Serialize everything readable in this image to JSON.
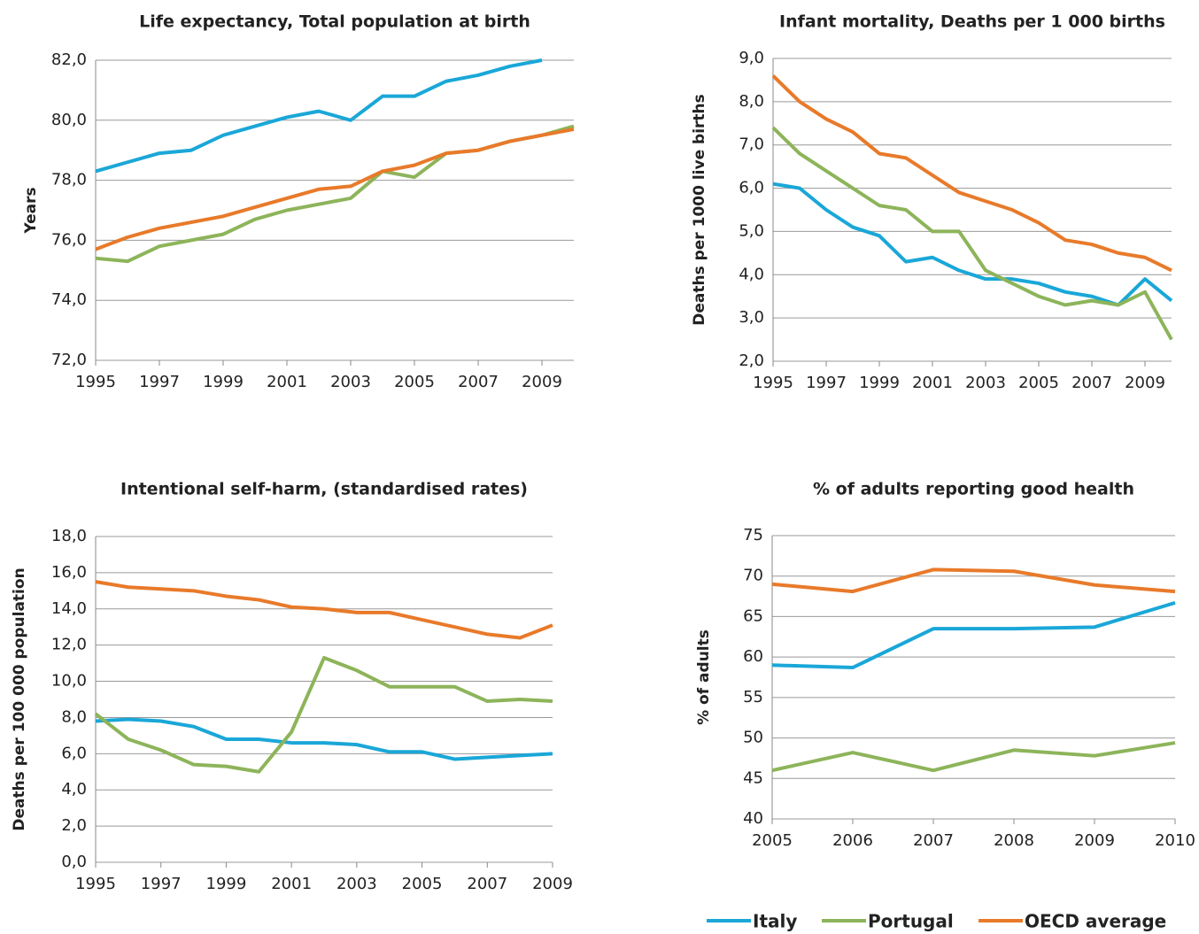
{
  "chart_data": [
    {
      "type": "line",
      "title": "Life expectancy, Total population at birth",
      "ylabel": "Years",
      "x": [
        1995,
        1996,
        1997,
        1998,
        1999,
        2000,
        2001,
        2002,
        2003,
        2004,
        2005,
        2006,
        2007,
        2008,
        2009,
        2010
      ],
      "xlim": [
        1995,
        2010
      ],
      "xticks": [
        1995,
        1997,
        1999,
        2001,
        2003,
        2005,
        2007,
        2009
      ],
      "ylim": [
        72,
        82
      ],
      "yticks": [
        {
          "value": 72,
          "label": "72,0"
        },
        {
          "value": 74,
          "label": "74,0"
        },
        {
          "value": 76,
          "label": "76,0"
        },
        {
          "value": 78,
          "label": "78,0"
        },
        {
          "value": 80,
          "label": "80,0"
        },
        {
          "value": 82,
          "label": "82,0"
        }
      ],
      "grid": true,
      "series": [
        {
          "name": "Italy",
          "color": "#1aa7d8",
          "values": [
            78.3,
            78.6,
            78.9,
            79.0,
            79.5,
            79.8,
            80.1,
            80.3,
            80.0,
            80.8,
            80.8,
            81.3,
            81.5,
            81.8,
            82.0,
            null
          ]
        },
        {
          "name": "Portugal",
          "color": "#8db45a",
          "values": [
            75.4,
            75.3,
            75.8,
            76.0,
            76.2,
            76.7,
            77.0,
            77.2,
            77.4,
            78.3,
            78.1,
            78.9,
            79.0,
            79.3,
            79.5,
            79.8
          ]
        },
        {
          "name": "OECD average",
          "color": "#e87a2a",
          "values": [
            75.7,
            76.1,
            76.4,
            76.6,
            76.8,
            77.1,
            77.4,
            77.7,
            77.8,
            78.3,
            78.5,
            78.9,
            79.0,
            79.3,
            79.5,
            79.7
          ]
        }
      ]
    },
    {
      "type": "line",
      "title": "Infant mortality, Deaths per 1 000 births",
      "ylabel": "Deaths per 1000 live births",
      "x": [
        1995,
        1996,
        1997,
        1998,
        1999,
        2000,
        2001,
        2002,
        2003,
        2004,
        2005,
        2006,
        2007,
        2008,
        2009,
        2010
      ],
      "xlim": [
        1995,
        2010
      ],
      "xticks": [
        1995,
        1997,
        1999,
        2001,
        2003,
        2005,
        2007,
        2009
      ],
      "ylim": [
        2,
        9
      ],
      "yticks": [
        {
          "value": 2,
          "label": "2,0"
        },
        {
          "value": 3,
          "label": "3,0"
        },
        {
          "value": 4,
          "label": "4,0"
        },
        {
          "value": 5,
          "label": "5,0"
        },
        {
          "value": 6,
          "label": "6,0"
        },
        {
          "value": 7,
          "label": "7,0"
        },
        {
          "value": 8,
          "label": "8,0"
        },
        {
          "value": 9,
          "label": "9,0"
        }
      ],
      "grid": true,
      "series": [
        {
          "name": "Italy",
          "color": "#1aa7d8",
          "values": [
            6.1,
            6.0,
            5.5,
            5.1,
            4.9,
            4.3,
            4.4,
            4.1,
            3.9,
            3.9,
            3.8,
            3.6,
            3.5,
            3.3,
            3.9,
            3.4
          ]
        },
        {
          "name": "Portugal",
          "color": "#8db45a",
          "values": [
            7.4,
            6.8,
            6.4,
            6.0,
            5.6,
            5.5,
            5.0,
            5.0,
            4.1,
            3.8,
            3.5,
            3.3,
            3.4,
            3.3,
            3.6,
            2.5
          ]
        },
        {
          "name": "OECD average",
          "color": "#e87a2a",
          "values": [
            8.6,
            8.0,
            7.6,
            7.3,
            6.8,
            6.7,
            6.3,
            5.9,
            5.7,
            5.5,
            5.2,
            4.8,
            4.7,
            4.5,
            4.4,
            4.1
          ]
        }
      ]
    },
    {
      "type": "line",
      "title": "Intentional self-harm, (standardised rates)",
      "ylabel": "Deaths per 100 000 population",
      "x": [
        1995,
        1996,
        1997,
        1998,
        1999,
        2000,
        2001,
        2002,
        2003,
        2004,
        2005,
        2006,
        2007,
        2008,
        2009
      ],
      "xlim": [
        1995,
        2009
      ],
      "xticks": [
        1995,
        1997,
        1999,
        2001,
        2003,
        2005,
        2007,
        2009
      ],
      "ylim": [
        0,
        18
      ],
      "yticks": [
        {
          "value": 0,
          "label": "0,0"
        },
        {
          "value": 2,
          "label": "2,0"
        },
        {
          "value": 4,
          "label": "4,0"
        },
        {
          "value": 6,
          "label": "6,0"
        },
        {
          "value": 8,
          "label": "8,0"
        },
        {
          "value": 10,
          "label": "10,0"
        },
        {
          "value": 12,
          "label": "12,0"
        },
        {
          "value": 14,
          "label": "14,0"
        },
        {
          "value": 16,
          "label": "16,0"
        },
        {
          "value": 18,
          "label": "18,0"
        }
      ],
      "grid": true,
      "series": [
        {
          "name": "Italy",
          "color": "#1aa7d8",
          "values": [
            7.8,
            7.9,
            7.8,
            7.5,
            6.8,
            6.8,
            6.6,
            6.6,
            6.5,
            6.1,
            6.1,
            5.7,
            5.8,
            5.9,
            6.0
          ]
        },
        {
          "name": "Portugal",
          "color": "#8db45a",
          "values": [
            8.2,
            6.8,
            6.2,
            5.4,
            5.3,
            5.0,
            7.2,
            11.3,
            10.6,
            9.7,
            9.7,
            9.7,
            8.9,
            9.0,
            8.9
          ]
        },
        {
          "name": "OECD average",
          "color": "#e87a2a",
          "values": [
            15.5,
            15.2,
            15.1,
            15.0,
            14.7,
            14.5,
            14.1,
            14.0,
            13.8,
            13.8,
            13.4,
            13.0,
            12.6,
            12.4,
            13.1
          ]
        }
      ]
    },
    {
      "type": "line",
      "title": "% of adults reporting good health",
      "ylabel": "% of adults",
      "x": [
        2005,
        2006,
        2007,
        2008,
        2009,
        2010
      ],
      "xlim": [
        2005,
        2010
      ],
      "xticks": [
        2005,
        2006,
        2007,
        2008,
        2009,
        2010
      ],
      "ylim": [
        40,
        75
      ],
      "yticks": [
        40,
        45,
        50,
        55,
        60,
        65,
        70,
        75
      ],
      "grid": true,
      "series": [
        {
          "name": "Italy",
          "color": "#1aa7d8",
          "values": [
            59.0,
            58.7,
            63.5,
            63.5,
            63.7,
            66.7
          ]
        },
        {
          "name": "Portugal",
          "color": "#8db45a",
          "values": [
            46.0,
            48.2,
            46.0,
            48.5,
            47.8,
            49.4
          ]
        },
        {
          "name": "OECD average",
          "color": "#e87a2a",
          "values": [
            69.0,
            68.1,
            70.8,
            70.6,
            68.9,
            68.1
          ]
        }
      ]
    }
  ]
}
